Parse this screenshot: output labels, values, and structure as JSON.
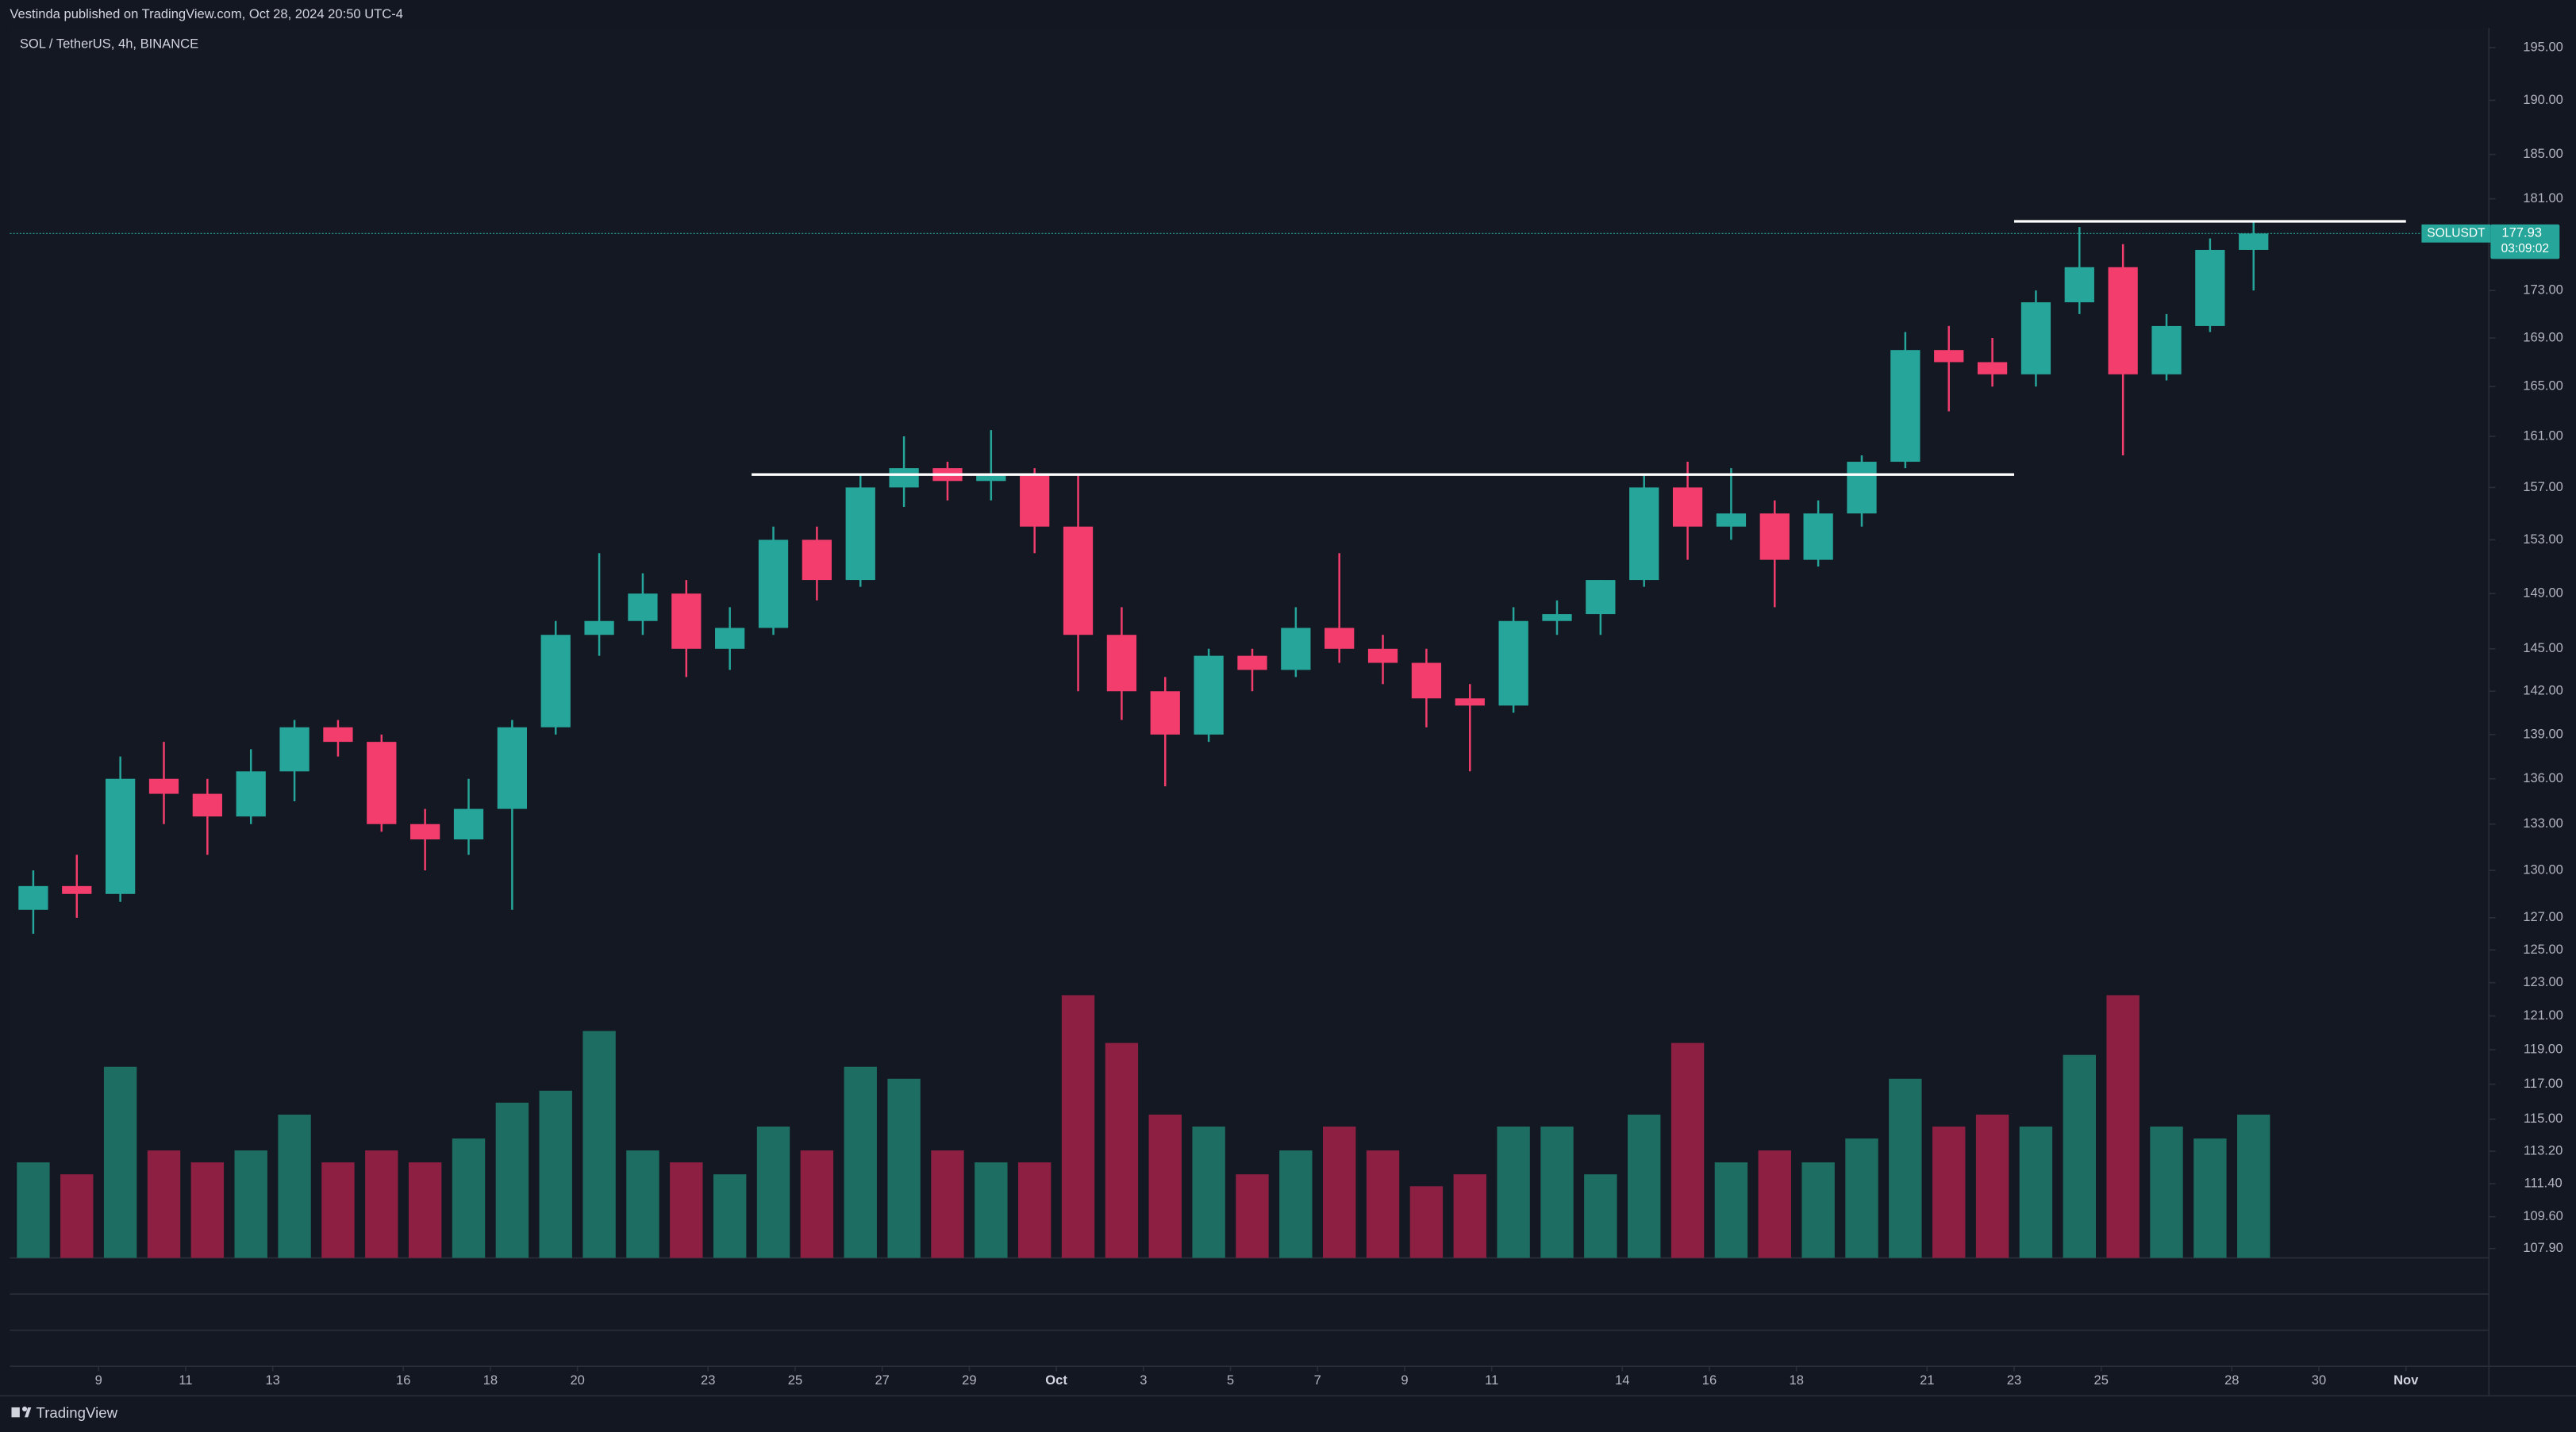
{
  "header": {
    "text": "Vestinda published on TradingView.com, Oct 28, 2024 20:50 UTC-4"
  },
  "footer": {
    "brand": "TradingView"
  },
  "chart_data": {
    "type": "candlestick",
    "title": "SOL / TetherUS, 4h, BINANCE",
    "symbol": "SOLUSDT",
    "countdown": "03:09:02",
    "log_scale": true,
    "up_color": "#26a69a",
    "down_color": "#f23d6d",
    "up_volume_color": "#1d6d62",
    "down_volume_color": "#8c1f42",
    "x": [
      "2024-09-07",
      "2024-09-08",
      "2024-09-09",
      "2024-09-10",
      "2024-09-11",
      "2024-09-12",
      "2024-09-13",
      "2024-09-14",
      "2024-09-15",
      "2024-09-16",
      "2024-09-17",
      "2024-09-18",
      "2024-09-19",
      "2024-09-20",
      "2024-09-21",
      "2024-09-22",
      "2024-09-23",
      "2024-09-24",
      "2024-09-25",
      "2024-09-26",
      "2024-09-27",
      "2024-09-28",
      "2024-09-29",
      "2024-09-30",
      "2024-10-01",
      "2024-10-02",
      "2024-10-03",
      "2024-10-04",
      "2024-10-05",
      "2024-10-06",
      "2024-10-07",
      "2024-10-08",
      "2024-10-09",
      "2024-10-10",
      "2024-10-11",
      "2024-10-12",
      "2024-10-13",
      "2024-10-14",
      "2024-10-15",
      "2024-10-16",
      "2024-10-17",
      "2024-10-18",
      "2024-10-19",
      "2024-10-20",
      "2024-10-21",
      "2024-10-22",
      "2024-10-23",
      "2024-10-24",
      "2024-10-25",
      "2024-10-26",
      "2024-10-27",
      "2024-10-28"
    ],
    "open": [
      127.5,
      129,
      128.5,
      136,
      135,
      133.5,
      136.5,
      139.5,
      138.5,
      133,
      132,
      134,
      139.5,
      146,
      147,
      149,
      145,
      146.5,
      153,
      150,
      157,
      158.5,
      157.5,
      158,
      154,
      146,
      142,
      139,
      144.5,
      143.5,
      146.5,
      145,
      144,
      141.5,
      141,
      147,
      147.5,
      150,
      157,
      154,
      155,
      151.5,
      155,
      159,
      168,
      167,
      166,
      172,
      175,
      166,
      170,
      176.5
    ],
    "high": [
      130,
      131,
      137.5,
      138.5,
      136,
      138,
      140,
      140,
      139,
      134,
      136,
      140,
      147,
      152,
      150.5,
      150,
      148,
      154,
      154,
      158,
      161,
      159,
      161.5,
      158.5,
      158,
      148,
      143,
      145,
      145,
      148,
      152,
      146,
      145,
      142.5,
      148,
      148.5,
      150,
      158,
      159,
      158.5,
      156,
      156,
      159.5,
      169.5,
      170,
      169,
      173,
      178.5,
      177,
      171,
      177.5,
      179
    ],
    "low": [
      126,
      127,
      128,
      133,
      131,
      133,
      134.5,
      137.5,
      132.5,
      130,
      131,
      127.5,
      139,
      144.5,
      146,
      143,
      143.5,
      146,
      148.5,
      149.5,
      155.5,
      156,
      156,
      152,
      142,
      140,
      135.5,
      138.5,
      142,
      143,
      144,
      142.5,
      139.5,
      136.5,
      140.5,
      146,
      146,
      149.5,
      151.5,
      153,
      148,
      151,
      154,
      158.5,
      163,
      165,
      165,
      171,
      159.5,
      165.5,
      169.5,
      173
    ],
    "close": [
      129,
      128.5,
      136,
      135,
      133.5,
      136.5,
      139.5,
      138.5,
      133,
      132,
      134,
      139.5,
      146,
      147,
      149,
      145,
      146.5,
      153,
      150,
      157,
      158.5,
      157.5,
      158,
      154,
      146,
      142,
      139,
      144.5,
      143.5,
      146.5,
      145,
      144,
      141.5,
      141,
      147,
      147.5,
      150,
      157,
      154,
      155,
      151.5,
      155,
      159,
      168,
      167,
      166,
      172,
      175,
      166,
      170,
      176.5,
      177.93
    ],
    "volume": [
      40,
      35,
      80,
      45,
      40,
      45,
      60,
      40,
      45,
      40,
      50,
      65,
      70,
      95,
      45,
      40,
      35,
      55,
      45,
      80,
      75,
      45,
      40,
      40,
      110,
      90,
      60,
      55,
      35,
      45,
      55,
      45,
      30,
      35,
      55,
      55,
      35,
      60,
      90,
      40,
      45,
      40,
      50,
      75,
      55,
      60,
      55,
      85,
      110,
      55,
      50,
      60
    ],
    "levels": [
      {
        "value": 158,
        "from": "2024-09-24",
        "to": "2024-10-23"
      },
      {
        "value": 179,
        "from": "2024-10-23",
        "to": "2024-11-01"
      }
    ],
    "ylim": [
      107.4,
      196.9
    ],
    "yticks": [
      {
        "value": 195,
        "label": "195.00"
      },
      {
        "value": 190,
        "label": "190.00"
      },
      {
        "value": 185,
        "label": "185.00"
      },
      {
        "value": 181,
        "label": "181.00"
      },
      {
        "value": 173,
        "label": "173.00"
      },
      {
        "value": 169,
        "label": "169.00"
      },
      {
        "value": 165,
        "label": "165.00"
      },
      {
        "value": 161,
        "label": "161.00"
      },
      {
        "value": 157,
        "label": "157.00"
      },
      {
        "value": 153,
        "label": "153.00"
      },
      {
        "value": 149,
        "label": "149.00"
      },
      {
        "value": 145,
        "label": "145.00"
      },
      {
        "value": 142,
        "label": "142.00"
      },
      {
        "value": 139,
        "label": "139.00"
      },
      {
        "value": 136,
        "label": "136.00"
      },
      {
        "value": 133,
        "label": "133.00"
      },
      {
        "value": 130,
        "label": "130.00"
      },
      {
        "value": 127,
        "label": "127.00"
      },
      {
        "value": 125,
        "label": "125.00"
      },
      {
        "value": 123,
        "label": "123.00"
      },
      {
        "value": 121,
        "label": "121.00"
      },
      {
        "value": 119,
        "label": "119.00"
      },
      {
        "value": 117,
        "label": "117.00"
      },
      {
        "value": 115,
        "label": "115.00"
      },
      {
        "value": 113.2,
        "label": "113.20"
      },
      {
        "value": 111.4,
        "label": "111.40"
      },
      {
        "value": 109.6,
        "label": "109.60"
      },
      {
        "value": 107.9,
        "label": "107.90"
      }
    ],
    "xticks": [
      {
        "value": "2024-09-09",
        "label": "9"
      },
      {
        "value": "2024-09-11",
        "label": "11"
      },
      {
        "value": "2024-09-13",
        "label": "13"
      },
      {
        "value": "2024-09-16",
        "label": "16"
      },
      {
        "value": "2024-09-18",
        "label": "18"
      },
      {
        "value": "2024-09-20",
        "label": "20"
      },
      {
        "value": "2024-09-23",
        "label": "23"
      },
      {
        "value": "2024-09-25",
        "label": "25"
      },
      {
        "value": "2024-09-27",
        "label": "27"
      },
      {
        "value": "2024-09-29",
        "label": "29"
      },
      {
        "value": "2024-10-01",
        "label": "Oct"
      },
      {
        "value": "2024-10-03",
        "label": "3"
      },
      {
        "value": "2024-10-05",
        "label": "5"
      },
      {
        "value": "2024-10-07",
        "label": "7"
      },
      {
        "value": "2024-10-09",
        "label": "9"
      },
      {
        "value": "2024-10-11",
        "label": "11"
      },
      {
        "value": "2024-10-14",
        "label": "14"
      },
      {
        "value": "2024-10-16",
        "label": "16"
      },
      {
        "value": "2024-10-18",
        "label": "18"
      },
      {
        "value": "2024-10-21",
        "label": "21"
      },
      {
        "value": "2024-10-23",
        "label": "23"
      },
      {
        "value": "2024-10-25",
        "label": "25"
      },
      {
        "value": "2024-10-28",
        "label": "28"
      },
      {
        "value": "2024-10-30",
        "label": "30"
      },
      {
        "value": "2024-11-01",
        "label": "Nov"
      }
    ]
  }
}
